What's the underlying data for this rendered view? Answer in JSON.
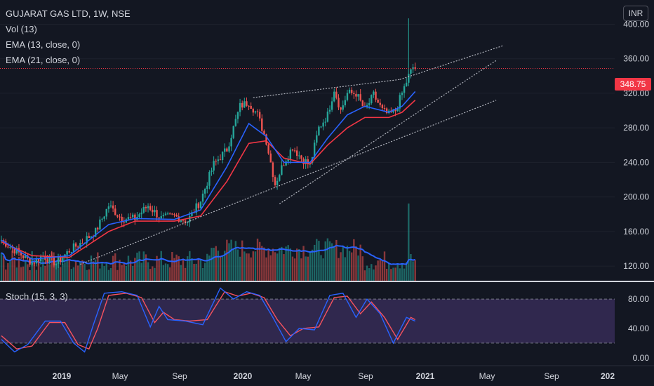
{
  "legend": {
    "symbol": "GUJARAT GAS LTD, 1W, NSE",
    "vol": "Vol (13)",
    "ema13": "EMA (13, close, 0)",
    "ema21": "EMA (21, close, 0)",
    "stoch": "Stoch (15, 3, 3)"
  },
  "currency": "INR",
  "last_price_label": "348.75",
  "colors": {
    "background": "#131722",
    "up": "#26a69a",
    "down": "#ef5350",
    "ema13": "#2962ff",
    "ema21": "#f23645",
    "vol_ma": "#2962ff",
    "stoch_k": "#2962ff",
    "stoch_d": "#f7525f",
    "stoch_band": "#7e57c2",
    "trendline": "#b2b5be"
  },
  "chart_data": {
    "type": "candlestick",
    "price_axis": {
      "ticks": [
        400,
        360,
        320,
        280,
        240,
        200,
        160,
        120
      ],
      "ylim": [
        103,
        428
      ]
    },
    "time_axis": {
      "labels": [
        "2019",
        "May",
        "Sep",
        "2020",
        "May",
        "Sep",
        "2021",
        "May",
        "Sep",
        "202"
      ]
    },
    "last_price": 348.75,
    "close_path": [
      {
        "w": 0,
        "c": 150
      },
      {
        "w": 8,
        "c": 135
      },
      {
        "w": 14,
        "c": 124
      },
      {
        "w": 19,
        "c": 132
      },
      {
        "w": 25,
        "c": 123
      },
      {
        "w": 31,
        "c": 138
      },
      {
        "w": 37,
        "c": 148
      },
      {
        "w": 43,
        "c": 160
      },
      {
        "w": 49,
        "c": 190
      },
      {
        "w": 55,
        "c": 175
      },
      {
        "w": 61,
        "c": 175
      },
      {
        "w": 67,
        "c": 190
      },
      {
        "w": 73,
        "c": 175
      },
      {
        "w": 79,
        "c": 178
      },
      {
        "w": 85,
        "c": 172
      },
      {
        "w": 91,
        "c": 196
      },
      {
        "w": 97,
        "c": 238
      },
      {
        "w": 103,
        "c": 255
      },
      {
        "w": 109,
        "c": 305
      },
      {
        "w": 113,
        "c": 310
      },
      {
        "w": 117,
        "c": 295
      },
      {
        "w": 121,
        "c": 265
      },
      {
        "w": 125,
        "c": 215
      },
      {
        "w": 129,
        "c": 240
      },
      {
        "w": 133,
        "c": 258
      },
      {
        "w": 137,
        "c": 245
      },
      {
        "w": 141,
        "c": 237
      },
      {
        "w": 145,
        "c": 280
      },
      {
        "w": 149,
        "c": 295
      },
      {
        "w": 152,
        "c": 325
      },
      {
        "w": 155,
        "c": 300
      },
      {
        "w": 158,
        "c": 320
      },
      {
        "w": 162,
        "c": 320
      },
      {
        "w": 166,
        "c": 300
      },
      {
        "w": 170,
        "c": 318
      },
      {
        "w": 174,
        "c": 300
      },
      {
        "w": 177,
        "c": 295
      },
      {
        "w": 180,
        "c": 300
      },
      {
        "w": 183,
        "c": 320
      },
      {
        "w": 186,
        "c": 340
      },
      {
        "w": 188,
        "c": 350
      },
      {
        "w": 189,
        "c": 348.75
      }
    ],
    "ema13_path": [
      {
        "w": 0,
        "c": 150
      },
      {
        "w": 14,
        "c": 128
      },
      {
        "w": 31,
        "c": 132
      },
      {
        "w": 49,
        "c": 168
      },
      {
        "w": 61,
        "c": 175
      },
      {
        "w": 79,
        "c": 174
      },
      {
        "w": 91,
        "c": 185
      },
      {
        "w": 103,
        "c": 235
      },
      {
        "w": 113,
        "c": 285
      },
      {
        "w": 121,
        "c": 270
      },
      {
        "w": 129,
        "c": 240
      },
      {
        "w": 141,
        "c": 240
      },
      {
        "w": 149,
        "c": 268
      },
      {
        "w": 158,
        "c": 295
      },
      {
        "w": 166,
        "c": 305
      },
      {
        "w": 177,
        "c": 298
      },
      {
        "w": 183,
        "c": 305
      },
      {
        "w": 189,
        "c": 322
      }
    ],
    "ema21_path": [
      {
        "w": 0,
        "c": 148
      },
      {
        "w": 14,
        "c": 132
      },
      {
        "w": 31,
        "c": 130
      },
      {
        "w": 49,
        "c": 160
      },
      {
        "w": 61,
        "c": 172
      },
      {
        "w": 79,
        "c": 172
      },
      {
        "w": 91,
        "c": 178
      },
      {
        "w": 103,
        "c": 218
      },
      {
        "w": 113,
        "c": 262
      },
      {
        "w": 121,
        "c": 265
      },
      {
        "w": 129,
        "c": 245
      },
      {
        "w": 141,
        "c": 238
      },
      {
        "w": 149,
        "c": 260
      },
      {
        "w": 158,
        "c": 280
      },
      {
        "w": 166,
        "c": 292
      },
      {
        "w": 177,
        "c": 292
      },
      {
        "w": 183,
        "c": 298
      },
      {
        "w": 189,
        "c": 312
      }
    ],
    "trendlines": [
      {
        "w1": 115,
        "p1": 315,
        "w2": 182,
        "p2": 336
      },
      {
        "w1": 127,
        "p1": 192,
        "w2": 226,
        "p2": 358
      },
      {
        "w1": 36,
        "p1": 122,
        "w2": 226,
        "p2": 312
      },
      {
        "w1": 182,
        "p1": 336,
        "w2": 229,
        "p2": 375
      }
    ],
    "stoch": {
      "ticks": [
        80,
        40,
        0
      ],
      "band": [
        20,
        80
      ],
      "ylim": [
        -5,
        105
      ],
      "k_path": [
        {
          "w": 0,
          "v": 25
        },
        {
          "w": 6,
          "v": 8
        },
        {
          "w": 12,
          "v": 18
        },
        {
          "w": 20,
          "v": 50
        },
        {
          "w": 27,
          "v": 50
        },
        {
          "w": 33,
          "v": 20
        },
        {
          "w": 38,
          "v": 8
        },
        {
          "w": 42,
          "v": 45
        },
        {
          "w": 47,
          "v": 88
        },
        {
          "w": 55,
          "v": 90
        },
        {
          "w": 62,
          "v": 85
        },
        {
          "w": 68,
          "v": 42
        },
        {
          "w": 72,
          "v": 70
        },
        {
          "w": 76,
          "v": 52
        },
        {
          "w": 84,
          "v": 50
        },
        {
          "w": 92,
          "v": 45
        },
        {
          "w": 100,
          "v": 95
        },
        {
          "w": 106,
          "v": 80
        },
        {
          "w": 112,
          "v": 90
        },
        {
          "w": 118,
          "v": 85
        },
        {
          "w": 124,
          "v": 55
        },
        {
          "w": 130,
          "v": 22
        },
        {
          "w": 136,
          "v": 40
        },
        {
          "w": 143,
          "v": 38
        },
        {
          "w": 150,
          "v": 85
        },
        {
          "w": 156,
          "v": 88
        },
        {
          "w": 162,
          "v": 55
        },
        {
          "w": 167,
          "v": 80
        },
        {
          "w": 173,
          "v": 60
        },
        {
          "w": 179,
          "v": 20
        },
        {
          "w": 185,
          "v": 55
        },
        {
          "w": 189,
          "v": 50
        }
      ],
      "d_path": [
        {
          "w": 0,
          "v": 30
        },
        {
          "w": 7,
          "v": 12
        },
        {
          "w": 14,
          "v": 16
        },
        {
          "w": 22,
          "v": 48
        },
        {
          "w": 29,
          "v": 48
        },
        {
          "w": 35,
          "v": 18
        },
        {
          "w": 40,
          "v": 12
        },
        {
          "w": 44,
          "v": 40
        },
        {
          "w": 49,
          "v": 85
        },
        {
          "w": 57,
          "v": 88
        },
        {
          "w": 64,
          "v": 82
        },
        {
          "w": 70,
          "v": 48
        },
        {
          "w": 74,
          "v": 62
        },
        {
          "w": 79,
          "v": 52
        },
        {
          "w": 86,
          "v": 50
        },
        {
          "w": 94,
          "v": 52
        },
        {
          "w": 102,
          "v": 90
        },
        {
          "w": 108,
          "v": 84
        },
        {
          "w": 114,
          "v": 88
        },
        {
          "w": 120,
          "v": 82
        },
        {
          "w": 126,
          "v": 52
        },
        {
          "w": 132,
          "v": 30
        },
        {
          "w": 138,
          "v": 40
        },
        {
          "w": 145,
          "v": 42
        },
        {
          "w": 152,
          "v": 82
        },
        {
          "w": 158,
          "v": 84
        },
        {
          "w": 164,
          "v": 60
        },
        {
          "w": 169,
          "v": 76
        },
        {
          "w": 175,
          "v": 55
        },
        {
          "w": 181,
          "v": 25
        },
        {
          "w": 187,
          "v": 55
        },
        {
          "w": 189,
          "v": 52
        }
      ]
    }
  }
}
